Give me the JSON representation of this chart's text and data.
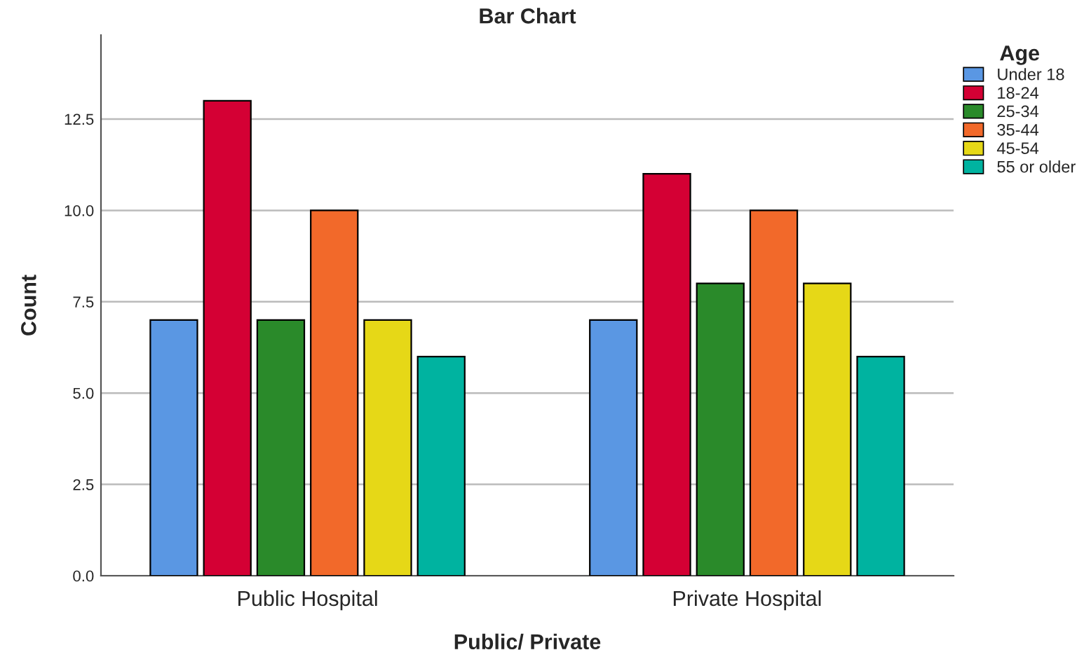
{
  "chart_data": {
    "type": "bar",
    "title": "Bar Chart",
    "xlabel": "Public/ Private",
    "ylabel": "Count",
    "legend_title": "Age",
    "categories": [
      "Public Hospital",
      "Private Hospital"
    ],
    "series": [
      {
        "name": "Under 18",
        "color": "#5a97e3",
        "values": [
          7,
          7
        ]
      },
      {
        "name": "18-24",
        "color": "#d40034",
        "values": [
          13,
          11
        ]
      },
      {
        "name": "25-34",
        "color": "#2a8a2a",
        "values": [
          7,
          8
        ]
      },
      {
        "name": "35-44",
        "color": "#f2692a",
        "values": [
          10,
          10
        ]
      },
      {
        "name": "45-54",
        "color": "#e6d817",
        "values": [
          7,
          8
        ]
      },
      {
        "name": "55 or older",
        "color": "#00b3a0",
        "values": [
          6,
          6
        ]
      }
    ],
    "ylim": [
      0,
      14.8
    ],
    "yticks": [
      {
        "value": 0,
        "label": "0.0"
      },
      {
        "value": 2.5,
        "label": "2.5"
      },
      {
        "value": 5,
        "label": "5.0"
      },
      {
        "value": 7.5,
        "label": "7.5"
      },
      {
        "value": 10,
        "label": "10.0"
      },
      {
        "value": 12.5,
        "label": "12.5"
      }
    ],
    "grid": "y",
    "legend": "top right"
  }
}
